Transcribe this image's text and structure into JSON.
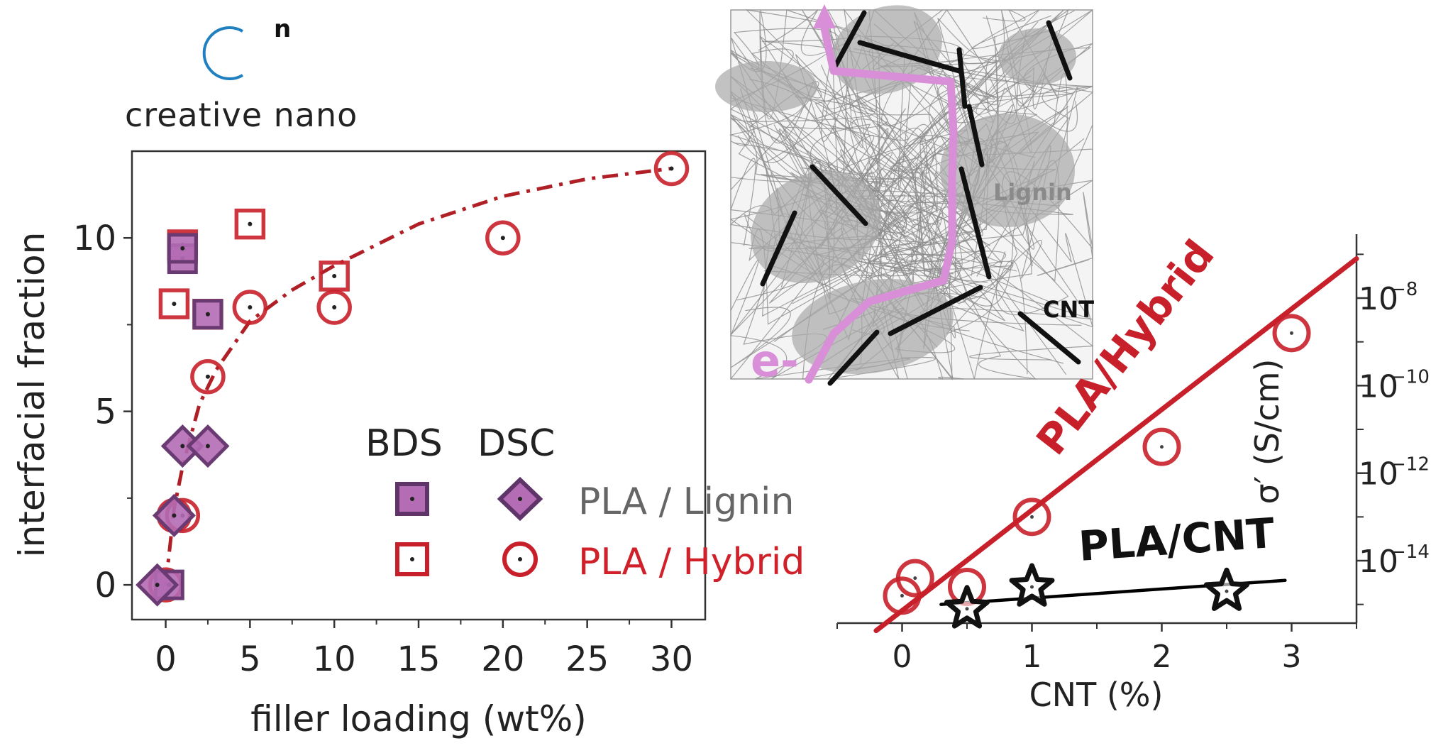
{
  "logo": {
    "superscript": "n",
    "text": "creative nano",
    "color": "#1f7fbf"
  },
  "colors": {
    "red": "#c8202a",
    "lignin_fill": "#b46cb4",
    "lignin_edge": "#6a3a72",
    "pink_path": "#d98fd8",
    "black": "#000000"
  },
  "chart_data": [
    {
      "type": "scatter",
      "title": "",
      "xlabel": "filler loading (wt%)",
      "ylabel": "interfacial fraction",
      "xlim": [
        -2,
        32
      ],
      "ylim": [
        -1,
        12.5
      ],
      "xticks": [
        0,
        5,
        10,
        15,
        20,
        25,
        30
      ],
      "yticks": [
        0,
        5,
        10
      ],
      "legend": {
        "position": "lower-right",
        "col_headers": [
          "BDS",
          "DSC"
        ],
        "rows": [
          "PLA / Lignin",
          "PLA / Hybrid"
        ]
      },
      "series": [
        {
          "marker": "square-filled",
          "method": "BDS",
          "system": "PLA / Lignin",
          "x": [
            0.2,
            1,
            1,
            2.5
          ],
          "y": [
            0,
            9.4,
            9.7,
            7.8
          ]
        },
        {
          "marker": "diamond-filled",
          "method": "DSC",
          "system": "PLA / Lignin",
          "x": [
            -0.5,
            0.5,
            1,
            2.5
          ],
          "y": [
            0,
            2,
            4,
            4
          ]
        },
        {
          "marker": "square-open",
          "method": "BDS",
          "system": "PLA / Hybrid",
          "x": [
            0.5,
            1,
            2.5,
            5,
            10
          ],
          "y": [
            8.1,
            9.8,
            7.8,
            10.4,
            8.9
          ]
        },
        {
          "marker": "circle-open",
          "method": "DSC",
          "system": "PLA / Hybrid",
          "x": [
            0,
            0.5,
            1,
            2.5,
            5,
            10,
            20,
            30
          ],
          "y": [
            0,
            2,
            2,
            6,
            8,
            8,
            10,
            12
          ]
        }
      ],
      "fit_line": {
        "style": "dash-dot",
        "x": [
          0,
          0.5,
          1,
          2,
          3,
          5,
          7.5,
          10,
          15,
          20,
          25,
          30
        ],
        "y": [
          0,
          2.2,
          3.4,
          5.2,
          6.2,
          7.6,
          8.5,
          9.2,
          10.4,
          11.2,
          11.7,
          12
        ]
      }
    },
    {
      "type": "scatter",
      "title": "",
      "xlabel": "CNT (%)",
      "ylabel": "σ′ (S/cm)",
      "xlim": [
        -0.5,
        3.5
      ],
      "xticks": [
        0,
        1,
        2,
        3
      ],
      "yscale": "log",
      "ylim": [
        1e-16,
        1e-06
      ],
      "yticks_log": [
        -14,
        -12,
        -10,
        -8
      ],
      "ytick_label_base": "10",
      "yaxis_side": "right",
      "series": [
        {
          "name": "PLA/Hybrid",
          "marker": "circle-open",
          "x": [
            0,
            0.1,
            0.5,
            1,
            2,
            3
          ],
          "y_log": [
            -14.8,
            -14.4,
            -14.6,
            -13.0,
            -11.4,
            -8.8
          ]
        },
        {
          "name": "PLA/CNT",
          "marker": "star-open",
          "x": [
            0.5,
            1,
            2.5
          ],
          "y_log": [
            -15.1,
            -14.6,
            -14.7
          ]
        }
      ],
      "fit_lines": [
        {
          "series": "PLA/Hybrid",
          "x": [
            -0.2,
            3.5
          ],
          "y_log": [
            -15.6,
            -7.1
          ]
        },
        {
          "series": "PLA/CNT",
          "x": [
            0.3,
            2.95
          ],
          "y_log": [
            -15.0,
            -14.45
          ]
        }
      ]
    }
  ],
  "schematic": {
    "label_lignin": "Lignin",
    "label_cnt": "CNT",
    "label_electron": "e-"
  }
}
